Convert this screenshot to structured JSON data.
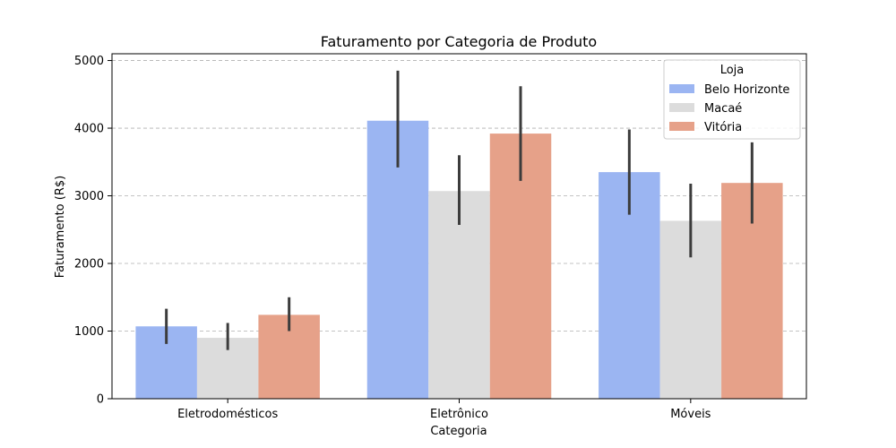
{
  "chart_data": {
    "type": "bar",
    "title": "Faturamento por Categoria de Produto",
    "xlabel": "Categoria",
    "ylabel": "Faturamento (R$)",
    "categories": [
      "Eletrodomésticos",
      "Eletrônico",
      "Móveis"
    ],
    "ylim": [
      0,
      5100
    ],
    "yticks": [
      0,
      1000,
      2000,
      3000,
      4000,
      5000
    ],
    "grid": true,
    "legend": {
      "title": "Loja",
      "position": "top-right"
    },
    "series": [
      {
        "name": "Belo Horizonte",
        "color": "#9bb5f2",
        "values": [
          1070,
          4110,
          3350
        ],
        "err_low": [
          810,
          3420,
          2720
        ],
        "err_high": [
          1330,
          4850,
          3980
        ]
      },
      {
        "name": "Macaé",
        "color": "#dcdcdc",
        "values": [
          900,
          3070,
          2630
        ],
        "err_low": [
          720,
          2570,
          2090
        ],
        "err_high": [
          1120,
          3600,
          3180
        ]
      },
      {
        "name": "Vitória",
        "color": "#e6a189",
        "values": [
          1240,
          3920,
          3190
        ],
        "err_low": [
          1000,
          3220,
          2590
        ],
        "err_high": [
          1500,
          4620,
          3790
        ]
      }
    ]
  }
}
